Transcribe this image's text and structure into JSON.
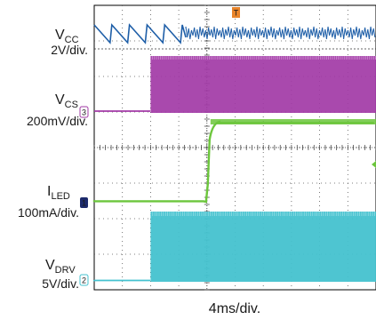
{
  "chart_data": {
    "type": "line",
    "title": "",
    "xlabel": "4ms/div.",
    "grid": true,
    "divisions": {
      "horizontal": 10,
      "vertical": 8
    },
    "time_per_div_ms": 4,
    "trigger_time_ms": 0,
    "x_range_ms": [
      -16,
      24
    ],
    "series": [
      {
        "name": "VCC",
        "channel": "1",
        "scale": "2V/div.",
        "color": "#1f5fa8",
        "description_points_ms": [
          -16,
          -13.5,
          -11,
          -8.5,
          -6,
          -3.5,
          -1,
          0,
          24
        ],
        "behavior": "sawtooth ramp-down cycles before turn-on, fast small ripple after turn-on"
      },
      {
        "name": "VCS",
        "channel": "3",
        "scale": "200mV/div.",
        "color": "#a23aa6",
        "x_ms": [
          -16,
          -8,
          -3,
          -3,
          24
        ],
        "y_div": [
          0.0,
          0.0,
          0.05,
          3.0,
          3.0
        ],
        "behavior": "flat until about -8ms, dense switching envelope from -8ms onward"
      },
      {
        "name": "ILED",
        "channel": "1",
        "scale": "100mA/div.",
        "color": "#6cc63c",
        "x_ms": [
          -16,
          -0.2,
          0.2,
          1,
          2,
          4,
          24
        ],
        "y_div": [
          0.0,
          0.05,
          2.2,
          3.0,
          3.2,
          3.3,
          3.3
        ],
        "behavior": "flat near zero, rises sharply at trigger and settles at plateau"
      },
      {
        "name": "VDRV",
        "channel": "2",
        "scale": "5V/div.",
        "color": "#44c2cf",
        "x_ms": [
          -16,
          -8.2,
          -8,
          24
        ],
        "y_div": [
          0.0,
          0.0,
          2.6,
          2.6
        ],
        "behavior": "flat until about -8ms, dense PWM switching envelope afterwards"
      }
    ]
  },
  "labels": {
    "vcc_main": "V",
    "vcc_sub": "CC",
    "vcc_scale": "2V/div.",
    "vcs_main": "V",
    "vcs_sub": "CS",
    "vcs_scale": "200mV/div.",
    "iled_main": "I",
    "iled_sub": "LED",
    "iled_scale": "100mA/div.",
    "vdrv_main": "V",
    "vdrv_sub": "DRV",
    "vdrv_scale": "5V/div.",
    "time_scale": "4ms/div."
  },
  "markers": {
    "ch_vcs": "3",
    "ch_iled": "1",
    "ch_vdrv": "2",
    "trigger": "T"
  }
}
